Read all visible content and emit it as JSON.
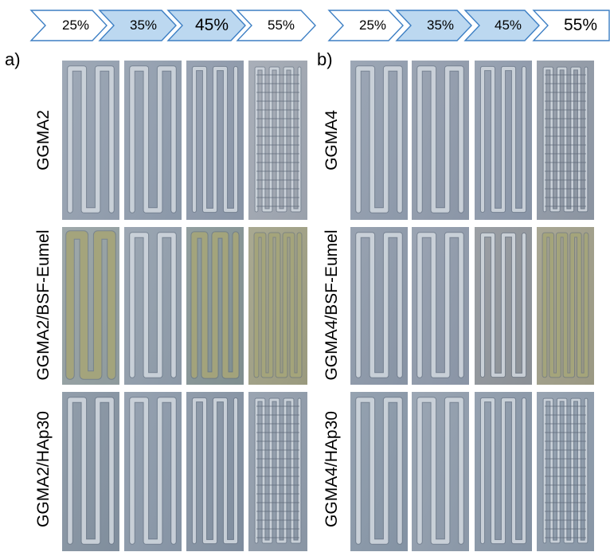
{
  "panels": {
    "a": {
      "letter": "a)",
      "percentages": [
        "25%",
        "35%",
        "45%",
        "55%"
      ],
      "rows": [
        "GGMA2",
        "GGMA2/BSF-Eumel",
        "GGMA2/HAp30"
      ]
    },
    "b": {
      "letter": "b)",
      "percentages": [
        "25%",
        "35%",
        "45%",
        "55%"
      ],
      "rows": [
        "GGMA4",
        "GGMA4/BSF-Eumel",
        "GGMA4/HAp30"
      ]
    }
  },
  "colors": {
    "chevron_outline": "#3d7fc4",
    "chevron_fill": "#bcd8f0",
    "chevron_plain": "#ffffff",
    "background_gray": "#8b97a6",
    "filament": "#e4e9ef",
    "greenish_sample": "#a9a77a"
  }
}
